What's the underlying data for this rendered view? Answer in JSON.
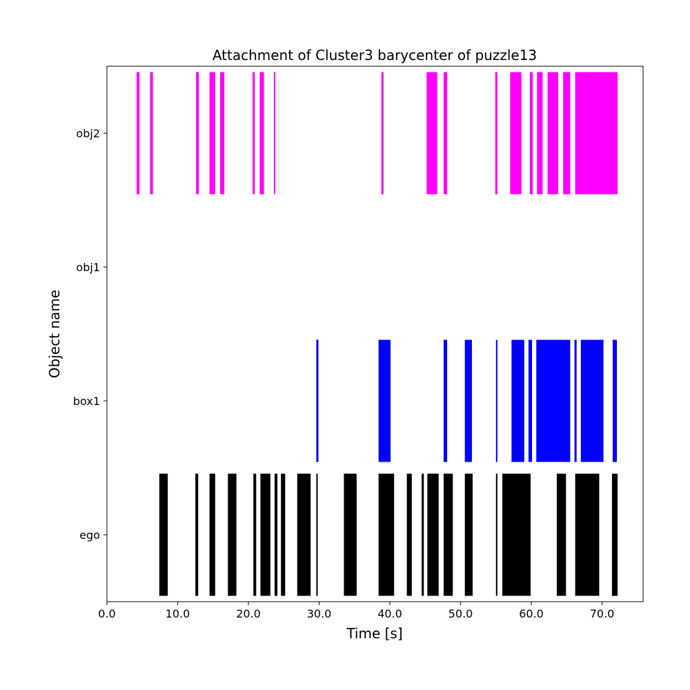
{
  "chart_data": {
    "type": "broken_barh",
    "title": "Attachment of Cluster3 barycenter of puzzle13",
    "xlabel": "Time [s]",
    "ylabel": "Object name",
    "xlim": [
      0,
      75.8
    ],
    "xticks": [
      0,
      10,
      20,
      30,
      40,
      50,
      60,
      70
    ],
    "xtick_labels": [
      "0.0",
      "10.0",
      "20.0",
      "30.0",
      "40.0",
      "50.0",
      "60.0",
      "70.0"
    ],
    "categories": [
      "ego",
      "box1",
      "obj1",
      "obj2"
    ],
    "grid": false,
    "legend": "none",
    "series": [
      {
        "category": "ego",
        "color": "#000000",
        "intervals": [
          [
            7.4,
            8.6
          ],
          [
            12.5,
            12.9
          ],
          [
            14.5,
            15.3
          ],
          [
            17.1,
            18.3
          ],
          [
            20.7,
            21.1
          ],
          [
            21.7,
            23.1
          ],
          [
            23.7,
            24.1
          ],
          [
            24.6,
            25.2
          ],
          [
            26.9,
            28.8
          ],
          [
            29.6,
            29.8
          ],
          [
            33.5,
            35.3
          ],
          [
            38.4,
            40.6
          ],
          [
            42.4,
            43.1
          ],
          [
            44.5,
            44.8
          ],
          [
            45.3,
            46.9
          ],
          [
            47.6,
            48.9
          ],
          [
            50.6,
            51.7
          ],
          [
            55.0,
            55.2
          ],
          [
            55.9,
            59.9
          ],
          [
            63.6,
            64.9
          ],
          [
            66.2,
            69.6
          ],
          [
            71.4,
            72.2
          ]
        ]
      },
      {
        "category": "box1",
        "color": "#0000ff",
        "intervals": [
          [
            29.6,
            29.9
          ],
          [
            38.4,
            40.1
          ],
          [
            47.6,
            48.1
          ],
          [
            50.6,
            51.6
          ],
          [
            55.0,
            55.2
          ],
          [
            57.2,
            59.0
          ],
          [
            59.6,
            60.1
          ],
          [
            60.7,
            65.5
          ],
          [
            66.1,
            66.4
          ],
          [
            67.0,
            70.2
          ],
          [
            71.5,
            72.1
          ]
        ]
      },
      {
        "category": "obj1",
        "color": "#ff00ff",
        "intervals": []
      },
      {
        "category": "obj2",
        "color": "#ff00ff",
        "intervals": [
          [
            4.2,
            4.6
          ],
          [
            6.1,
            6.5
          ],
          [
            12.6,
            13.0
          ],
          [
            14.5,
            15.3
          ],
          [
            16.0,
            16.6
          ],
          [
            20.6,
            20.9
          ],
          [
            21.6,
            22.2
          ],
          [
            23.6,
            23.8
          ],
          [
            38.8,
            39.1
          ],
          [
            45.2,
            46.7
          ],
          [
            47.6,
            48.1
          ],
          [
            54.9,
            55.2
          ],
          [
            57.0,
            58.6
          ],
          [
            59.8,
            60.2
          ],
          [
            60.8,
            61.6
          ],
          [
            62.3,
            63.8
          ],
          [
            64.5,
            65.5
          ],
          [
            66.2,
            72.2
          ]
        ]
      }
    ]
  }
}
